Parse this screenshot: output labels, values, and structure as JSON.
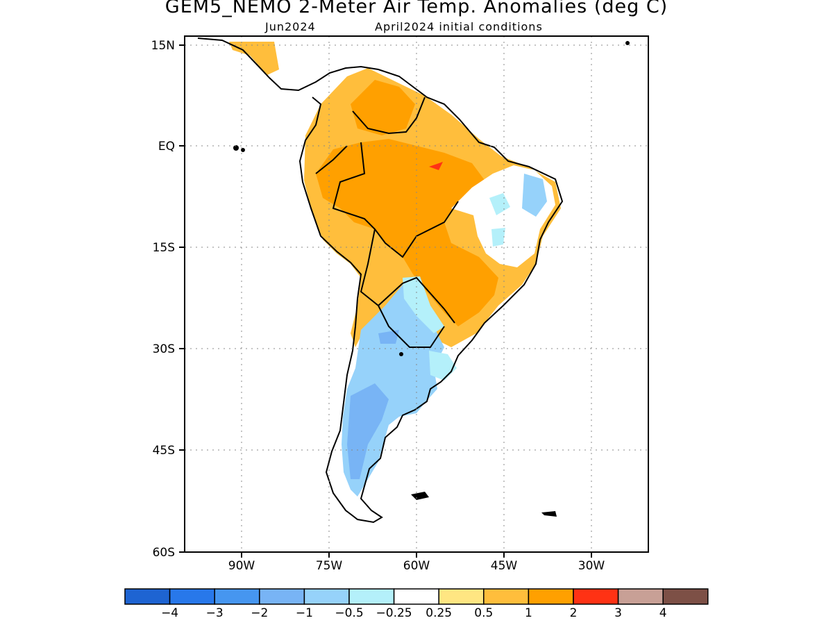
{
  "header": {
    "title": "GEM5_NEMO 2-Meter Air Temp. Anomalies (deg C)",
    "forecast_month": "Jun2024",
    "initial_conditions": "April2024 initial conditions"
  },
  "axes": {
    "lat_labels": [
      "15N",
      "EQ",
      "15S",
      "30S",
      "45S",
      "60S"
    ],
    "lon_labels": [
      "90W",
      "75W",
      "60W",
      "45W",
      "30W"
    ]
  },
  "colorbar": {
    "colors": [
      "#1e64d2",
      "#2878ea",
      "#4696f0",
      "#78b4f5",
      "#96d2fa",
      "#b4f0fa",
      "#ffffff",
      "#ffe682",
      "#ffbe3c",
      "#ffa000",
      "#ff3214",
      "#c8a096",
      "#7d5046"
    ],
    "labels": [
      "−4",
      "−3",
      "−2",
      "−1",
      "−0.5",
      "−0.25",
      "0.25",
      "0.5",
      "1",
      "2",
      "3",
      "4"
    ]
  },
  "palette": {
    "warm_strong": "#ffa000",
    "warm": "#ffbe3c",
    "warm_light": "#ffe682",
    "cool_light": "#b4f0fa",
    "cool": "#96d2fa",
    "cool_mid": "#78b4f5",
    "hot_spot": "#ff3214",
    "neutral": "#ffffff"
  }
}
